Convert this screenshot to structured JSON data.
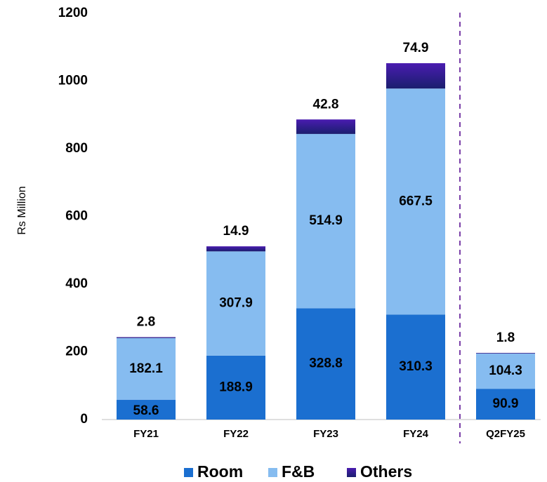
{
  "chart_data": {
    "type": "bar",
    "stacked": true,
    "y_label": "Rs Million",
    "categories": [
      "FY21",
      "FY22",
      "FY23",
      "FY24",
      "Q2FY25"
    ],
    "series": [
      {
        "name": "Room",
        "color": "#1b6fd0",
        "values": [
          58.6,
          188.9,
          328.8,
          310.3,
          90.9
        ]
      },
      {
        "name": "F&B",
        "color": "#86bcf0",
        "values": [
          182.1,
          307.9,
          514.9,
          667.5,
          104.3
        ]
      },
      {
        "name": "Others",
        "color": "#3a1aa6",
        "values": [
          2.8,
          14.9,
          42.8,
          74.9,
          1.8
        ]
      }
    ],
    "ylim": [
      0,
      1200
    ],
    "yticks": [
      0,
      200,
      400,
      600,
      800,
      1000,
      1200
    ],
    "grid": false,
    "legend": "bottom"
  }
}
